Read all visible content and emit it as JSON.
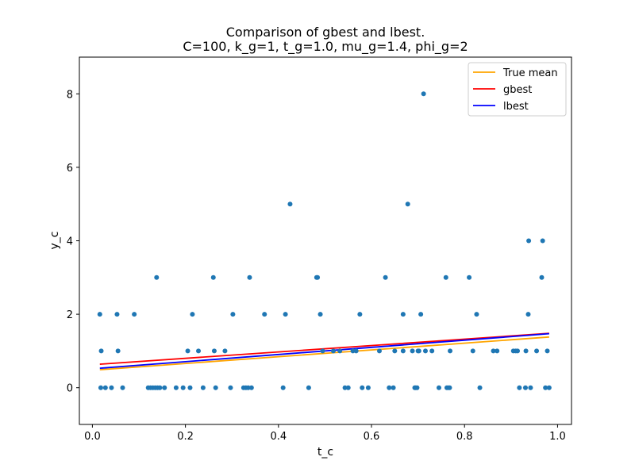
{
  "chart_data": {
    "type": "scatter",
    "title_line1": "Comparison of gbest and lbest.",
    "title_line2": "C=100, k_g=1, t_g=1.0, mu_g=1.4, phi_g=2",
    "xlabel": "t_c",
    "ylabel": "y_c",
    "xlim": [
      -0.028,
      1.03
    ],
    "ylim": [
      -1.0,
      9.0
    ],
    "xticks": [
      0.0,
      0.2,
      0.4,
      0.6,
      0.8,
      1.0
    ],
    "xtick_labels": [
      "0.0",
      "0.2",
      "0.4",
      "0.6",
      "0.8",
      "1.0"
    ],
    "yticks": [
      0,
      2,
      4,
      6,
      8
    ],
    "ytick_labels": [
      "0",
      "2",
      "4",
      "6",
      "8"
    ],
    "grid": false,
    "legend_position": "top-right",
    "scatter": {
      "color": "#1f77b4",
      "points": [
        [
          0.016,
          2
        ],
        [
          0.018,
          0
        ],
        [
          0.019,
          1
        ],
        [
          0.028,
          0
        ],
        [
          0.041,
          0
        ],
        [
          0.053,
          2
        ],
        [
          0.055,
          1
        ],
        [
          0.065,
          0
        ],
        [
          0.09,
          2
        ],
        [
          0.12,
          0
        ],
        [
          0.125,
          0
        ],
        [
          0.13,
          0
        ],
        [
          0.135,
          0
        ],
        [
          0.138,
          3
        ],
        [
          0.14,
          0
        ],
        [
          0.145,
          0
        ],
        [
          0.155,
          0
        ],
        [
          0.18,
          0
        ],
        [
          0.195,
          0
        ],
        [
          0.205,
          1
        ],
        [
          0.21,
          0
        ],
        [
          0.215,
          2
        ],
        [
          0.228,
          1
        ],
        [
          0.238,
          0
        ],
        [
          0.26,
          3
        ],
        [
          0.262,
          1
        ],
        [
          0.265,
          0
        ],
        [
          0.285,
          1
        ],
        [
          0.297,
          0
        ],
        [
          0.302,
          2
        ],
        [
          0.325,
          0
        ],
        [
          0.33,
          0
        ],
        [
          0.335,
          0
        ],
        [
          0.338,
          3
        ],
        [
          0.342,
          0
        ],
        [
          0.37,
          2
        ],
        [
          0.41,
          0
        ],
        [
          0.415,
          2
        ],
        [
          0.425,
          5
        ],
        [
          0.465,
          0
        ],
        [
          0.482,
          3
        ],
        [
          0.484,
          3
        ],
        [
          0.49,
          2
        ],
        [
          0.495,
          1
        ],
        [
          0.518,
          1
        ],
        [
          0.532,
          1
        ],
        [
          0.543,
          0
        ],
        [
          0.55,
          0
        ],
        [
          0.56,
          1
        ],
        [
          0.567,
          1
        ],
        [
          0.575,
          2
        ],
        [
          0.58,
          0
        ],
        [
          0.593,
          0
        ],
        [
          0.617,
          1
        ],
        [
          0.63,
          3
        ],
        [
          0.638,
          0
        ],
        [
          0.647,
          0
        ],
        [
          0.65,
          1
        ],
        [
          0.668,
          2
        ],
        [
          0.668,
          1
        ],
        [
          0.678,
          5
        ],
        [
          0.688,
          1
        ],
        [
          0.693,
          0
        ],
        [
          0.695,
          0
        ],
        [
          0.698,
          0
        ],
        [
          0.7,
          1
        ],
        [
          0.702,
          1
        ],
        [
          0.706,
          2
        ],
        [
          0.712,
          8
        ],
        [
          0.716,
          1
        ],
        [
          0.73,
          1
        ],
        [
          0.745,
          0
        ],
        [
          0.76,
          3
        ],
        [
          0.762,
          0
        ],
        [
          0.765,
          0
        ],
        [
          0.768,
          0
        ],
        [
          0.769,
          1
        ],
        [
          0.81,
          3
        ],
        [
          0.818,
          1
        ],
        [
          0.826,
          2
        ],
        [
          0.833,
          0
        ],
        [
          0.862,
          1
        ],
        [
          0.87,
          1
        ],
        [
          0.905,
          1
        ],
        [
          0.91,
          1
        ],
        [
          0.914,
          1
        ],
        [
          0.918,
          0
        ],
        [
          0.931,
          0
        ],
        [
          0.932,
          1
        ],
        [
          0.937,
          2
        ],
        [
          0.938,
          4
        ],
        [
          0.942,
          0
        ],
        [
          0.955,
          1
        ],
        [
          0.966,
          3
        ],
        [
          0.968,
          4
        ],
        [
          0.974,
          0
        ],
        [
          0.978,
          1
        ],
        [
          0.982,
          0
        ]
      ]
    },
    "lines": [
      {
        "name": "True mean",
        "color": "#ffa500",
        "x": [
          0.016,
          0.982
        ],
        "y": [
          0.49,
          1.38
        ]
      },
      {
        "name": "gbest",
        "color": "#ff0000",
        "x": [
          0.016,
          0.982
        ],
        "y": [
          0.64,
          1.48
        ]
      },
      {
        "name": "lbest",
        "color": "#0000ff",
        "x": [
          0.016,
          0.982
        ],
        "y": [
          0.53,
          1.47
        ]
      }
    ]
  }
}
